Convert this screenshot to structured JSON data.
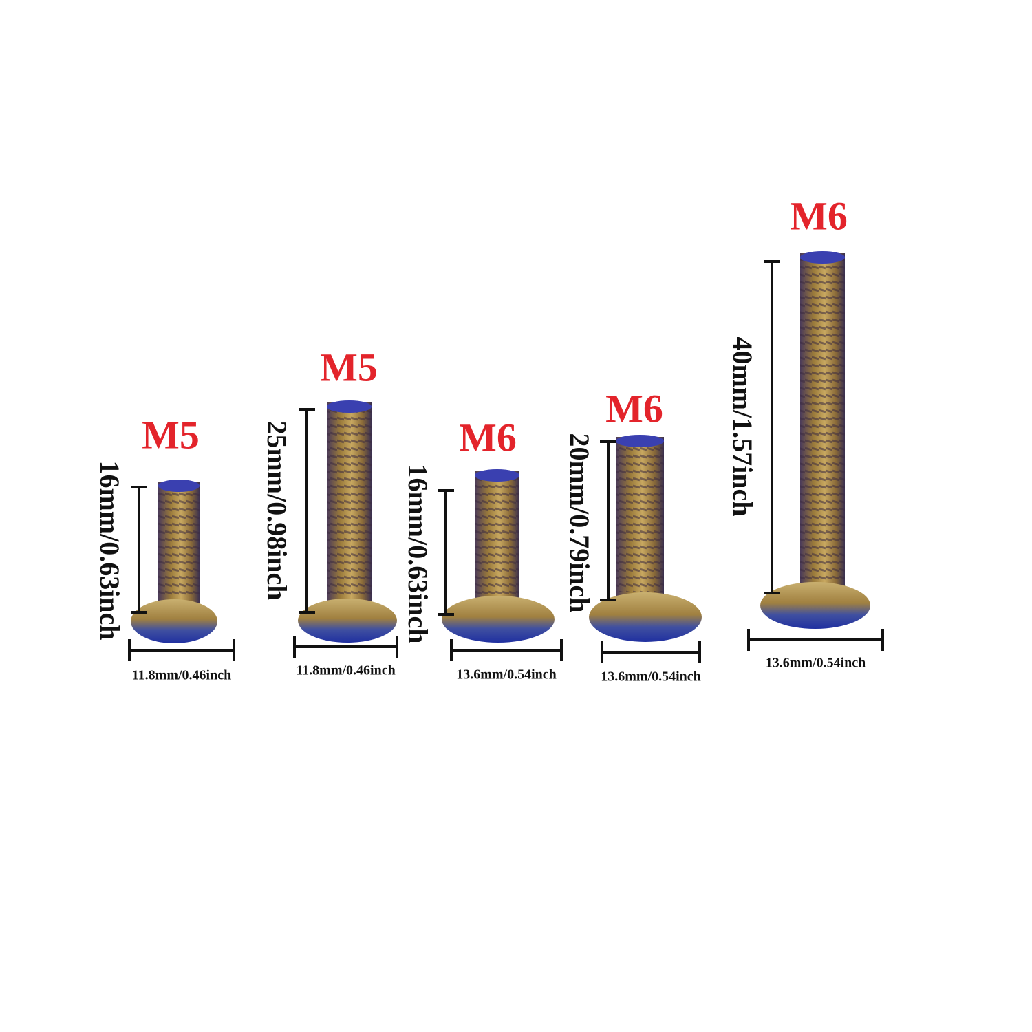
{
  "bolts": [
    {
      "size": "M5",
      "length": "16mm/0.63inch",
      "width": "11.8mm/0.46inch"
    },
    {
      "size": "M5",
      "length": "25mm/0.98inch",
      "width": "11.8mm/0.46inch"
    },
    {
      "size": "M6",
      "length": "16mm/0.63inch",
      "width": "13.6mm/0.54inch"
    },
    {
      "size": "M6",
      "length": "20mm/0.79inch",
      "width": "13.6mm/0.54inch"
    },
    {
      "size": "M6",
      "length": "40mm/1.57inch",
      "width": "13.6mm/0.54inch"
    }
  ]
}
